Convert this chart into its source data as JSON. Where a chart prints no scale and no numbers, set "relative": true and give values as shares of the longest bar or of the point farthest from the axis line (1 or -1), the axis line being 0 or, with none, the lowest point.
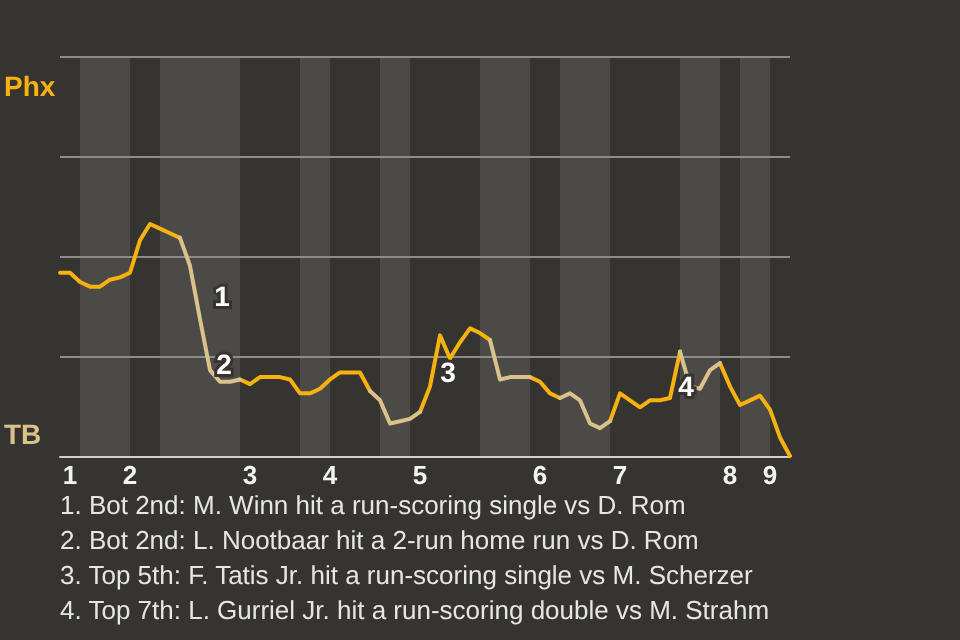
{
  "chart_data": {
    "type": "line",
    "relative": true,
    "marker": "none",
    "line_style": "solid",
    "ref_lines": [
      {
        "axis": "y",
        "value": 0.43,
        "color": "#8c8c8a"
      },
      {
        "axis": "y",
        "value": 0.86,
        "color": "#8c8c8a"
      },
      {
        "axis": "y",
        "value": 1.29,
        "color": "#8c8c8a"
      },
      {
        "axis": "y",
        "value": 1.72,
        "color": "#8c8c8a"
      }
    ],
    "categories": [
      null,
      "1",
      null,
      null,
      null,
      null,
      null,
      "2",
      null,
      null,
      null,
      null,
      null,
      null,
      null,
      null,
      null,
      null,
      null,
      "3",
      null,
      null,
      null,
      null,
      null,
      null,
      null,
      "4",
      null,
      null,
      null,
      null,
      null,
      null,
      null,
      null,
      "5",
      null,
      null,
      null,
      null,
      null,
      null,
      null,
      null,
      null,
      null,
      null,
      "6",
      null,
      null,
      null,
      null,
      null,
      null,
      null,
      "7",
      null,
      null,
      null,
      null,
      null,
      null,
      null,
      null,
      null,
      null,
      "8",
      null,
      null,
      null,
      "9",
      null,
      null
    ],
    "series": [
      {
        "color": "#f7b20f",
        "values": [
          0.79,
          0.79,
          0.75,
          0.73,
          0.73,
          0.76,
          0.77,
          0.79,
          0.93,
          1,
          0.98,
          0.96,
          0.94,
          null,
          null,
          null,
          null,
          null,
          0.33,
          0.31,
          0.34,
          0.34,
          0.34,
          0.33,
          0.27,
          0.27,
          0.29,
          0.33,
          0.36,
          0.36,
          0.36,
          0.28,
          null,
          null,
          null,
          null,
          0.19,
          0.3,
          0.52,
          0.42,
          0.49,
          0.55,
          0.53,
          0.5,
          null,
          null,
          null,
          0.34,
          0.32,
          0.27,
          0.25,
          null,
          null,
          null,
          null,
          0.15,
          0.27,
          0.24,
          0.21,
          0.24,
          0.24,
          0.25,
          0.45,
          null,
          null,
          null,
          0.4,
          0.3,
          0.22,
          0.24,
          0.26,
          0.2,
          0.08,
          0
        ]
      },
      {
        "color": "#d9c28c",
        "values": [
          null,
          null,
          null,
          null,
          null,
          null,
          null,
          null,
          null,
          null,
          null,
          null,
          0.94,
          0.82,
          0.59,
          0.37,
          0.32,
          0.32,
          0.33,
          null,
          null,
          null,
          null,
          null,
          null,
          null,
          null,
          null,
          null,
          null,
          null,
          0.28,
          0.24,
          0.14,
          0.15,
          0.16,
          0.19,
          null,
          null,
          null,
          null,
          null,
          null,
          0.5,
          0.33,
          0.34,
          0.34,
          0.34,
          null,
          null,
          0.25,
          0.27,
          0.24,
          0.14,
          0.12,
          0.15,
          null,
          null,
          null,
          null,
          null,
          null,
          0.45,
          0.3,
          0.29,
          0.37,
          0.4,
          null,
          null,
          null,
          null,
          null,
          null,
          null
        ]
      }
    ],
    "annotations": [
      "Phx",
      "TB",
      "1",
      "2",
      "3",
      "4",
      "1. Bot 2nd: M. Winn hit a run-scoring single vs D. Rom",
      "2. Bot 2nd: L. Nootbaar hit a 2-run home run vs D. Rom",
      "3. Top 5th: F. Tatis Jr. hit a run-scoring single vs M. Scherzer",
      "4. Top 7th: L. Gurriel Jr. hit a run-scoring double vs M. Strahm"
    ]
  }
}
